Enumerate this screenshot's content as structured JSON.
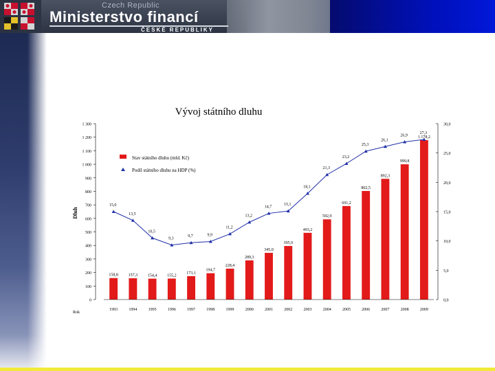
{
  "header": {
    "title": "Ministerstvo financí",
    "subtitle_top": "Czech Republic",
    "subtitle": "ČESKÉ REPUBLIKY"
  },
  "colors": {
    "bar": "#e31a1a",
    "line": "#1f2fa8"
  },
  "chart_data": {
    "type": "bar",
    "title": "Vývoj státního dluhu",
    "ylabel": "Dluh",
    "y2label": "",
    "corner_label": "Rok",
    "categories": [
      "1993",
      "1994",
      "1995",
      "1996",
      "1997",
      "1998",
      "1999",
      "2000",
      "2001",
      "2002",
      "2003",
      "2004",
      "2005",
      "2006",
      "2007",
      "2008",
      "2009"
    ],
    "ylim": [
      0,
      1300
    ],
    "yticks": [
      "0",
      "100",
      "200",
      "300",
      "400",
      "500",
      "600",
      "700",
      "800",
      "900",
      "1 000",
      "1 100",
      "1 200",
      "1 300"
    ],
    "y2lim": [
      0,
      30
    ],
    "y2ticks": [
      "0,0",
      "5,0",
      "10,0",
      "15,0",
      "20,0",
      "25,0",
      "30,0"
    ],
    "series": [
      {
        "name": "Stav státního dluhu (mld. Kč)",
        "type": "bar",
        "values": [
          158.8,
          157.3,
          154.4,
          155.2,
          173.1,
          194.7,
          228.4,
          289.3,
          345.0,
          395.9,
          493.2,
          592.9,
          691.2,
          802.5,
          892.3,
          999.8,
          1178.2
        ],
        "labels": [
          "158,8",
          "157,3",
          "154,4",
          "155,2",
          "173,1",
          "194,7",
          "228,4",
          "289,3",
          "345,0",
          "395,9",
          "493,2",
          "592,9",
          "691,2",
          "802,5",
          "892,3",
          "999,8",
          "1 178,2"
        ]
      },
      {
        "name": "Podíl státního dluhu na HDP (%)",
        "type": "line",
        "axis": "right",
        "values": [
          15.0,
          13.5,
          10.5,
          9.3,
          9.7,
          9.9,
          11.2,
          13.2,
          14.7,
          15.1,
          18.1,
          21.3,
          23.2,
          25.3,
          26.1,
          26.9,
          27.3
        ],
        "labels": [
          "15,0",
          "13,5",
          "10,5",
          "9,3",
          "9,7",
          "9,9",
          "11,2",
          "13,2",
          "14,7",
          "15,1",
          "18,1",
          "21,3",
          "23,2",
          "25,3",
          "26,1",
          "26,9",
          "27,3"
        ]
      }
    ],
    "legend_position": "top-left"
  }
}
